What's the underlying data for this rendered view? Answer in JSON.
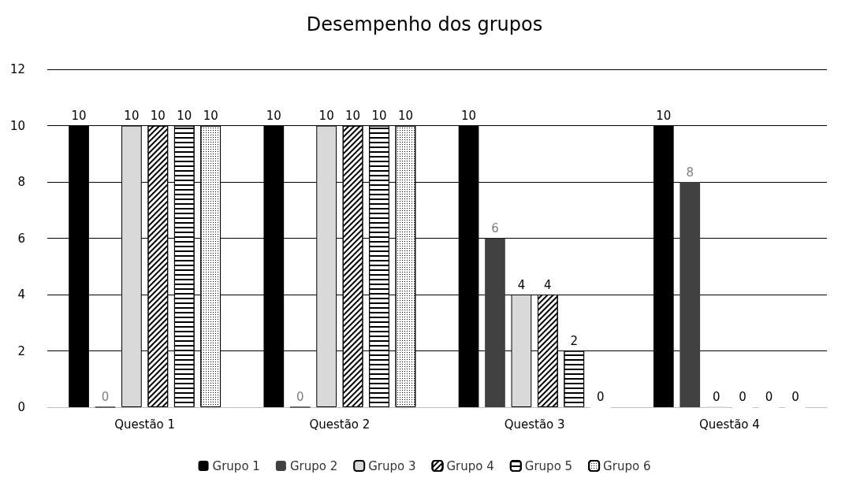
{
  "chart_data": {
    "type": "bar",
    "title": "Desempenho dos grupos",
    "categories": [
      "Questão 1",
      "Questão 2",
      "Questão 3",
      "Questão 4"
    ],
    "series": [
      {
        "name": "Grupo 1",
        "color": "#000000",
        "values": [
          10,
          10,
          10,
          10
        ]
      },
      {
        "name": "Grupo 2",
        "color": "#404040",
        "values": [
          0,
          0,
          6,
          8
        ]
      },
      {
        "name": "Grupo 3",
        "color": "#d9d9d9",
        "values": [
          10,
          10,
          4,
          0
        ]
      },
      {
        "name": "Grupo 4",
        "color": "#ffffff",
        "values": [
          10,
          10,
          4,
          0
        ]
      },
      {
        "name": "Grupo 5",
        "color": "#ffffff",
        "values": [
          10,
          10,
          2,
          0
        ]
      },
      {
        "name": "Grupo 6",
        "color": "#ffffff",
        "values": [
          10,
          10,
          0,
          0
        ]
      }
    ],
    "ylim": [
      0,
      12
    ],
    "yticks": [
      0,
      2,
      4,
      6,
      8,
      10,
      12
    ],
    "grid": "y",
    "legend": "bottom",
    "data_labels": true
  }
}
